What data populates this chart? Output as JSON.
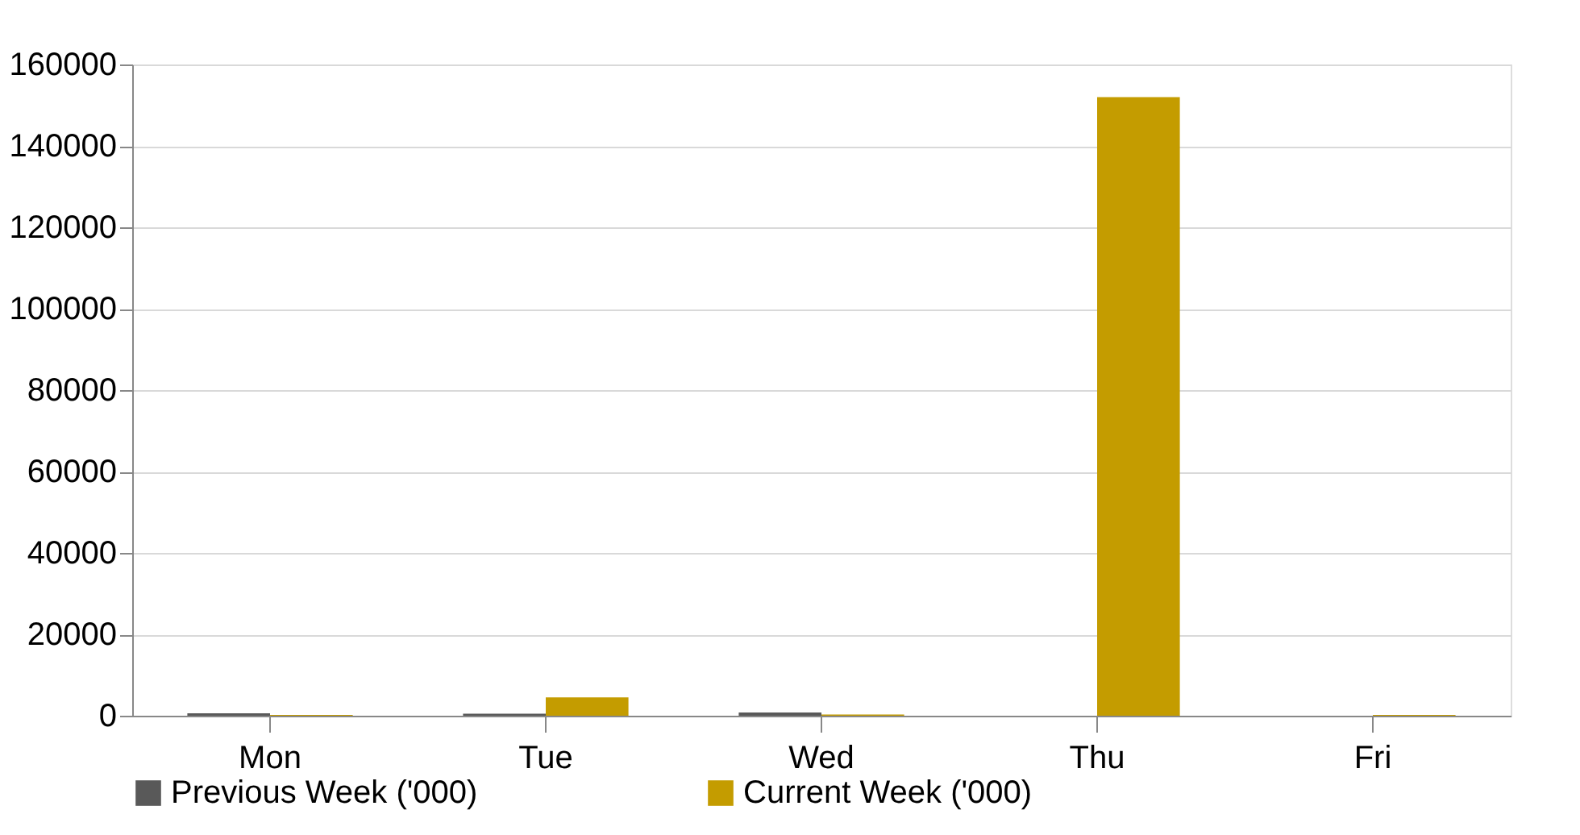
{
  "chart_data": {
    "type": "bar",
    "categories": [
      "Mon",
      "Tue",
      "Wed",
      "Thu",
      "Fri"
    ],
    "series": [
      {
        "name": "Previous Week ('000)",
        "color": "#595959",
        "values": [
          600,
          500,
          800,
          null,
          null
        ]
      },
      {
        "name": "Current Week ('000)",
        "color": "#c49c00",
        "values": [
          200,
          4500,
          300,
          152000,
          200
        ]
      }
    ],
    "ylim": [
      0,
      160000
    ],
    "yticks": [
      0,
      20000,
      40000,
      60000,
      80000,
      100000,
      120000,
      140000,
      160000
    ],
    "grid": "y",
    "legend": "bottom"
  }
}
